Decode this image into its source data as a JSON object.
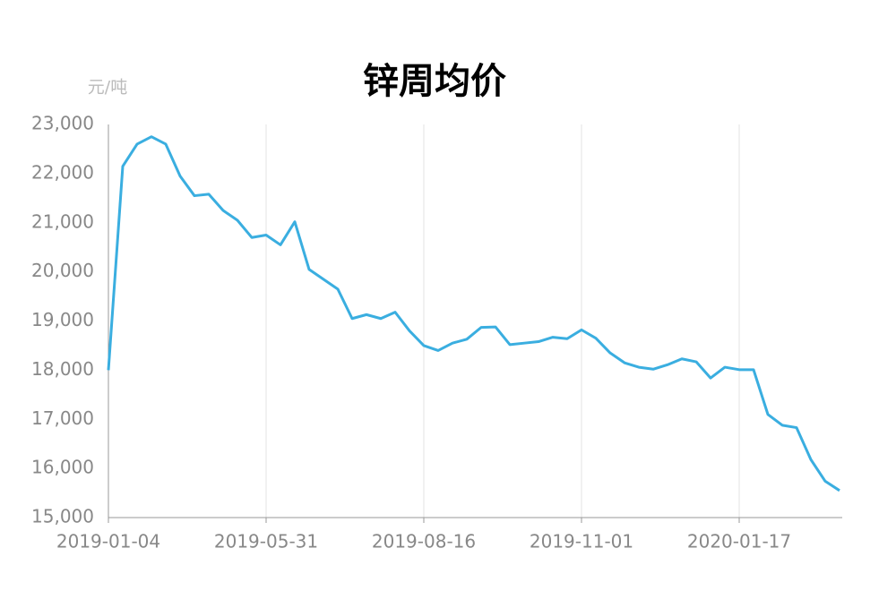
{
  "chart_data": {
    "type": "line",
    "title": "锌周均价",
    "y_label": "元/吨",
    "categories": [
      "2019-01-04",
      null,
      null,
      null,
      null,
      null,
      null,
      null,
      null,
      null,
      null,
      "2019-05-31",
      null,
      null,
      null,
      null,
      null,
      null,
      null,
      null,
      null,
      null,
      "2019-08-16",
      null,
      null,
      null,
      null,
      null,
      null,
      null,
      null,
      null,
      null,
      "2019-11-01",
      null,
      null,
      null,
      null,
      null,
      null,
      null,
      null,
      null,
      null,
      "2020-01-17",
      null,
      null,
      null,
      null,
      null,
      null,
      null
    ],
    "series": [
      {
        "name": "锌周均价",
        "color": "#3aaee0",
        "values": [
          18000,
          22150,
          22600,
          22750,
          22600,
          21950,
          21550,
          21580,
          21250,
          21050,
          20700,
          20750,
          20550,
          21020,
          20050,
          19850,
          19650,
          19050,
          19130,
          19050,
          19180,
          18800,
          18500,
          18400,
          18550,
          18630,
          18870,
          18880,
          18520,
          18550,
          18580,
          18670,
          18640,
          18820,
          18650,
          18350,
          18150,
          18060,
          18020,
          18110,
          18230,
          18170,
          17840,
          18060,
          18010,
          18010,
          17100,
          16880,
          16830,
          16180,
          15740,
          15550
        ]
      }
    ],
    "ylim": [
      15000,
      23000
    ],
    "yticks": [
      {
        "value": 15000,
        "label": "15,000"
      },
      {
        "value": 16000,
        "label": "16,000"
      },
      {
        "value": 17000,
        "label": "17,000"
      },
      {
        "value": 18000,
        "label": "18,000"
      },
      {
        "value": 19000,
        "label": "19,000"
      },
      {
        "value": 20000,
        "label": "20,000"
      },
      {
        "value": 21000,
        "label": "21,000"
      },
      {
        "value": 22000,
        "label": "22,000"
      },
      {
        "value": 23000,
        "label": "23,000"
      }
    ],
    "grid": "x"
  }
}
